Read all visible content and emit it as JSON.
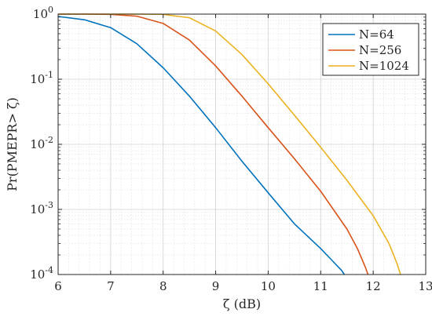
{
  "chart_data": {
    "type": "line",
    "xlabel": "ζ (dB)",
    "ylabel": "Pr(PMEPR> ζ)",
    "x_range": [
      6,
      13
    ],
    "y_range": [
      0.0001,
      1
    ],
    "y_scale": "log",
    "x_ticks": [
      "6",
      "7",
      "8",
      "9",
      "10",
      "11",
      "12",
      "13"
    ],
    "y_ticks": [
      {
        "base": "10",
        "exp": "0"
      },
      {
        "base": "10",
        "exp": "-1"
      },
      {
        "base": "10",
        "exp": "-2"
      },
      {
        "base": "10",
        "exp": "-3"
      },
      {
        "base": "10",
        "exp": "-4"
      }
    ],
    "grid": true,
    "minor_grid": true,
    "legend_position": "top-right",
    "series": [
      {
        "name": "N=64",
        "color": "#0072BD",
        "x": [
          6.0,
          6.5,
          7.0,
          7.5,
          8.0,
          8.5,
          9.0,
          9.5,
          10.0,
          10.5,
          11.0,
          11.2,
          11.4,
          11.45
        ],
        "y": [
          0.92,
          0.82,
          0.62,
          0.35,
          0.15,
          0.055,
          0.018,
          0.0055,
          0.0018,
          0.0006,
          0.00025,
          0.00017,
          0.000115,
          0.0001
        ]
      },
      {
        "name": "N=256",
        "color": "#D95319",
        "x": [
          6.0,
          6.5,
          7.0,
          7.5,
          8.0,
          8.5,
          9.0,
          9.5,
          10.0,
          10.5,
          11.0,
          11.5,
          11.7,
          11.85,
          11.9
        ],
        "y": [
          1.0,
          1.0,
          0.99,
          0.93,
          0.72,
          0.4,
          0.16,
          0.055,
          0.018,
          0.006,
          0.0019,
          0.0005,
          0.00025,
          0.00013,
          0.0001
        ]
      },
      {
        "name": "N=1024",
        "color": "#EDB120",
        "x": [
          6.0,
          7.0,
          7.5,
          8.0,
          8.5,
          9.0,
          9.5,
          10.0,
          10.5,
          11.0,
          11.5,
          12.0,
          12.3,
          12.45,
          12.52
        ],
        "y": [
          1.0,
          1.0,
          1.0,
          0.99,
          0.88,
          0.55,
          0.24,
          0.085,
          0.028,
          0.009,
          0.0028,
          0.0008,
          0.0003,
          0.00015,
          0.0001
        ]
      }
    ]
  }
}
